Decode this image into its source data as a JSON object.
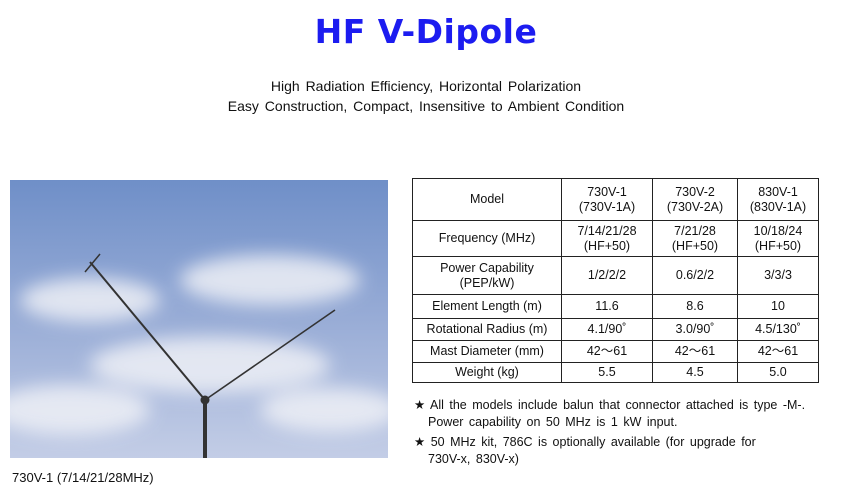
{
  "title": "HF V-Dipole",
  "subtitle_lines": [
    "High Radiation Efficiency, Horizontal Polarization",
    "Easy Construction, Compact, Insensitive to Ambient Condition"
  ],
  "photo_caption": "730V-1 (7/14/21/28MHz)",
  "table": {
    "rows": [
      {
        "label": [
          "Model"
        ],
        "values": [
          [
            "730V-1",
            "(730V-1A)"
          ],
          [
            "730V-2",
            "(730V-2A)"
          ],
          [
            "830V-1",
            "(830V-1A)"
          ]
        ]
      },
      {
        "label": [
          "Frequency (MHz)"
        ],
        "values": [
          [
            "7/14/21/28",
            "(HF+50)"
          ],
          [
            "7/21/28",
            "(HF+50)"
          ],
          [
            "10/18/24",
            "(HF+50)"
          ]
        ]
      },
      {
        "label": [
          "Power Capability",
          "(PEP/kW)"
        ],
        "values": [
          [
            "1/2/2/2"
          ],
          [
            "0.6/2/2"
          ],
          [
            "3/3/3"
          ]
        ]
      },
      {
        "label": [
          "Element Length (m)"
        ],
        "values": [
          [
            "11.6"
          ],
          [
            "8.6"
          ],
          [
            "10"
          ]
        ]
      },
      {
        "label": [
          "Rotational Radius (m)"
        ],
        "values": [
          [
            "4.1/90˚"
          ],
          [
            "3.0/90˚"
          ],
          [
            "4.5/130˚"
          ]
        ]
      },
      {
        "label": [
          "Mast Diameter (mm)"
        ],
        "values": [
          [
            "42～61"
          ],
          [
            "42～61"
          ],
          [
            "42～61"
          ]
        ]
      },
      {
        "label": [
          "Weight (kg)"
        ],
        "values": [
          [
            "5.5"
          ],
          [
            "4.5"
          ],
          [
            "5.0"
          ]
        ]
      }
    ]
  },
  "notes": [
    {
      "star": "★",
      "lines": [
        "All the models include balun that connector attached is type -M-.",
        "Power capability on 50 MHz is 1 kW input."
      ]
    },
    {
      "star": "★",
      "lines": [
        "50 MHz kit, 786C is optionally available (for upgrade for",
        "730V-x, 830V-x)"
      ]
    }
  ],
  "colors": {
    "title": "#1c1cf0"
  }
}
